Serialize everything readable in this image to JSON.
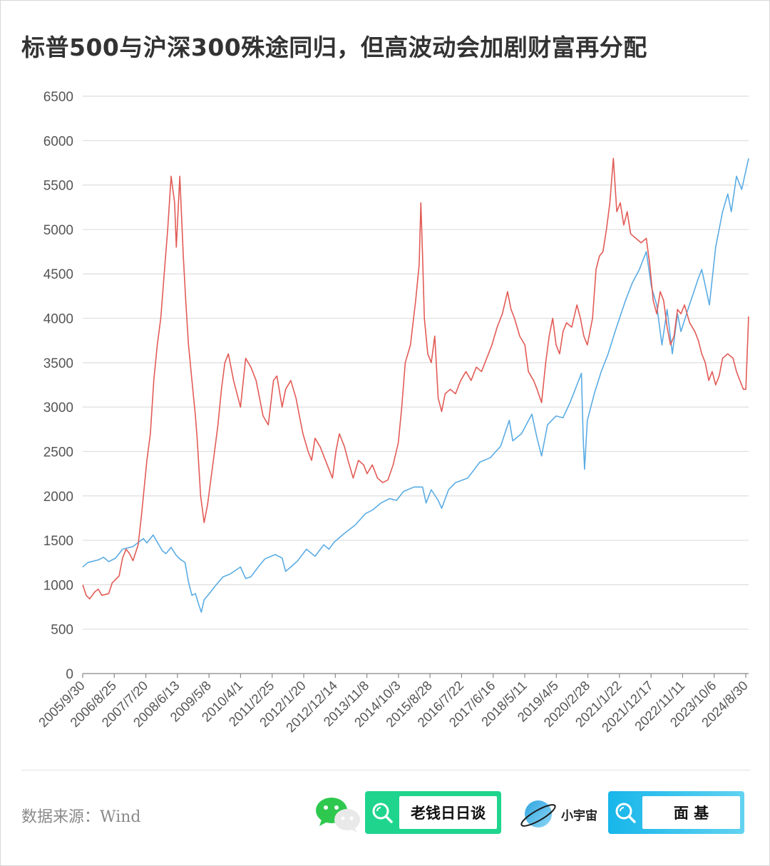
{
  "title": "标普500与沪深300殊途同归，但高波动会加剧财富再分配",
  "footer": {
    "source": "数据来源：Wind",
    "search_label_1": "老钱日日谈",
    "brand_name": "小宇宙",
    "search_label_2": "面 基"
  },
  "colors": {
    "sp500": "#5aace4",
    "csi300": "#e25b56",
    "grid": "#dddddd",
    "axis": "#888888",
    "green_box": "#1fd58e",
    "blue_box": "#17b6ea"
  },
  "chart_data": {
    "type": "line",
    "title": "标普500与沪深300殊途同归，但高波动会加剧财富再分配",
    "xlabel": "",
    "ylabel": "",
    "ylim": [
      0,
      6500
    ],
    "yticks": [
      0,
      500,
      1000,
      1500,
      2000,
      2500,
      3000,
      3500,
      4000,
      4500,
      5000,
      5500,
      6000,
      6500
    ],
    "xticks": [
      "2005/9/30",
      "2006/8/25",
      "2007/7/20",
      "2008/6/13",
      "2009/5/8",
      "2010/4/1",
      "2011/2/25",
      "2012/1/20",
      "2012/12/14",
      "2013/11/8",
      "2014/10/3",
      "2015/8/28",
      "2016/7/22",
      "2017/6/16",
      "2018/5/11",
      "2019/4/5",
      "2020/2/28",
      "2021/1/22",
      "2021/12/17",
      "2022/11/11",
      "2023/10/6",
      "2024/8/30"
    ],
    "x_range": [
      2005.75,
      2024.95
    ],
    "grid": true,
    "legend": "none",
    "series": [
      {
        "name": "",
        "color": "#5aace4",
        "points": [
          [
            2005.75,
            1200
          ],
          [
            2005.9,
            1250
          ],
          [
            2006.2,
            1280
          ],
          [
            2006.35,
            1310
          ],
          [
            2006.5,
            1260
          ],
          [
            2006.7,
            1300
          ],
          [
            2006.9,
            1400
          ],
          [
            2007.2,
            1430
          ],
          [
            2007.5,
            1520
          ],
          [
            2007.6,
            1470
          ],
          [
            2007.78,
            1560
          ],
          [
            2007.9,
            1480
          ],
          [
            2008.05,
            1380
          ],
          [
            2008.15,
            1350
          ],
          [
            2008.3,
            1420
          ],
          [
            2008.45,
            1330
          ],
          [
            2008.55,
            1290
          ],
          [
            2008.7,
            1250
          ],
          [
            2008.8,
            1030
          ],
          [
            2008.9,
            880
          ],
          [
            2009.0,
            900
          ],
          [
            2009.1,
            770
          ],
          [
            2009.17,
            690
          ],
          [
            2009.25,
            830
          ],
          [
            2009.4,
            900
          ],
          [
            2009.6,
            1000
          ],
          [
            2009.8,
            1090
          ],
          [
            2010.0,
            1120
          ],
          [
            2010.3,
            1200
          ],
          [
            2010.45,
            1070
          ],
          [
            2010.6,
            1090
          ],
          [
            2010.85,
            1220
          ],
          [
            2011.0,
            1290
          ],
          [
            2011.3,
            1340
          ],
          [
            2011.5,
            1300
          ],
          [
            2011.6,
            1150
          ],
          [
            2011.75,
            1200
          ],
          [
            2011.95,
            1270
          ],
          [
            2012.2,
            1400
          ],
          [
            2012.45,
            1320
          ],
          [
            2012.7,
            1450
          ],
          [
            2012.85,
            1400
          ],
          [
            2013.0,
            1480
          ],
          [
            2013.3,
            1580
          ],
          [
            2013.6,
            1670
          ],
          [
            2013.9,
            1800
          ],
          [
            2014.1,
            1840
          ],
          [
            2014.35,
            1920
          ],
          [
            2014.6,
            1970
          ],
          [
            2014.8,
            1950
          ],
          [
            2015.0,
            2050
          ],
          [
            2015.3,
            2100
          ],
          [
            2015.55,
            2100
          ],
          [
            2015.65,
            1920
          ],
          [
            2015.8,
            2070
          ],
          [
            2016.0,
            1950
          ],
          [
            2016.1,
            1860
          ],
          [
            2016.3,
            2070
          ],
          [
            2016.5,
            2150
          ],
          [
            2016.85,
            2200
          ],
          [
            2017.2,
            2380
          ],
          [
            2017.5,
            2430
          ],
          [
            2017.8,
            2560
          ],
          [
            2018.05,
            2850
          ],
          [
            2018.15,
            2620
          ],
          [
            2018.4,
            2700
          ],
          [
            2018.7,
            2920
          ],
          [
            2018.85,
            2650
          ],
          [
            2018.98,
            2450
          ],
          [
            2019.15,
            2800
          ],
          [
            2019.4,
            2900
          ],
          [
            2019.6,
            2880
          ],
          [
            2019.8,
            3050
          ],
          [
            2020.0,
            3250
          ],
          [
            2020.13,
            3380
          ],
          [
            2020.18,
            2650
          ],
          [
            2020.22,
            2300
          ],
          [
            2020.3,
            2850
          ],
          [
            2020.5,
            3150
          ],
          [
            2020.7,
            3400
          ],
          [
            2020.9,
            3600
          ],
          [
            2021.1,
            3850
          ],
          [
            2021.4,
            4200
          ],
          [
            2021.6,
            4400
          ],
          [
            2021.8,
            4550
          ],
          [
            2022.0,
            4750
          ],
          [
            2022.15,
            4350
          ],
          [
            2022.3,
            4150
          ],
          [
            2022.45,
            3700
          ],
          [
            2022.6,
            4100
          ],
          [
            2022.75,
            3600
          ],
          [
            2022.9,
            4050
          ],
          [
            2023.0,
            3850
          ],
          [
            2023.2,
            4100
          ],
          [
            2023.5,
            4450
          ],
          [
            2023.6,
            4550
          ],
          [
            2023.82,
            4150
          ],
          [
            2024.0,
            4800
          ],
          [
            2024.2,
            5200
          ],
          [
            2024.35,
            5400
          ],
          [
            2024.45,
            5200
          ],
          [
            2024.6,
            5600
          ],
          [
            2024.75,
            5450
          ],
          [
            2024.95,
            5800
          ]
        ]
      },
      {
        "name": "",
        "color": "#e25b56",
        "points": [
          [
            2005.75,
            1000
          ],
          [
            2005.85,
            880
          ],
          [
            2005.95,
            840
          ],
          [
            2006.1,
            920
          ],
          [
            2006.2,
            950
          ],
          [
            2006.3,
            880
          ],
          [
            2006.5,
            900
          ],
          [
            2006.6,
            1020
          ],
          [
            2006.8,
            1100
          ],
          [
            2006.9,
            1300
          ],
          [
            2007.0,
            1400
          ],
          [
            2007.1,
            1350
          ],
          [
            2007.2,
            1270
          ],
          [
            2007.35,
            1450
          ],
          [
            2007.45,
            1800
          ],
          [
            2007.6,
            2400
          ],
          [
            2007.7,
            2700
          ],
          [
            2007.8,
            3300
          ],
          [
            2007.9,
            3700
          ],
          [
            2008.0,
            4000
          ],
          [
            2008.1,
            4500
          ],
          [
            2008.2,
            5000
          ],
          [
            2008.3,
            5600
          ],
          [
            2008.4,
            5300
          ],
          [
            2008.45,
            4800
          ],
          [
            2008.55,
            5600
          ],
          [
            2008.65,
            4700
          ],
          [
            2008.72,
            4200
          ],
          [
            2008.8,
            3700
          ],
          [
            2008.9,
            3300
          ],
          [
            2009.0,
            2900
          ],
          [
            2009.05,
            2650
          ],
          [
            2009.15,
            2000
          ],
          [
            2009.25,
            1700
          ],
          [
            2009.35,
            1900
          ],
          [
            2009.45,
            2200
          ],
          [
            2009.55,
            2500
          ],
          [
            2009.65,
            2800
          ],
          [
            2009.75,
            3200
          ],
          [
            2009.85,
            3500
          ],
          [
            2009.95,
            3600
          ],
          [
            2010.1,
            3300
          ],
          [
            2010.3,
            3000
          ],
          [
            2010.45,
            3550
          ],
          [
            2010.6,
            3450
          ],
          [
            2010.75,
            3300
          ],
          [
            2010.85,
            3100
          ],
          [
            2010.95,
            2900
          ],
          [
            2011.1,
            2800
          ],
          [
            2011.25,
            3300
          ],
          [
            2011.35,
            3350
          ],
          [
            2011.5,
            3000
          ],
          [
            2011.6,
            3200
          ],
          [
            2011.75,
            3300
          ],
          [
            2011.9,
            3100
          ],
          [
            2012.0,
            2900
          ],
          [
            2012.1,
            2700
          ],
          [
            2012.25,
            2500
          ],
          [
            2012.35,
            2400
          ],
          [
            2012.45,
            2650
          ],
          [
            2012.6,
            2550
          ],
          [
            2012.75,
            2400
          ],
          [
            2012.95,
            2200
          ],
          [
            2013.05,
            2500
          ],
          [
            2013.15,
            2700
          ],
          [
            2013.3,
            2550
          ],
          [
            2013.4,
            2400
          ],
          [
            2013.55,
            2200
          ],
          [
            2013.7,
            2400
          ],
          [
            2013.85,
            2350
          ],
          [
            2013.95,
            2250
          ],
          [
            2014.1,
            2350
          ],
          [
            2014.25,
            2200
          ],
          [
            2014.4,
            2150
          ],
          [
            2014.55,
            2180
          ],
          [
            2014.7,
            2350
          ],
          [
            2014.85,
            2600
          ],
          [
            2014.95,
            3000
          ],
          [
            2015.05,
            3500
          ],
          [
            2015.2,
            3700
          ],
          [
            2015.35,
            4200
          ],
          [
            2015.45,
            4600
          ],
          [
            2015.5,
            5300
          ],
          [
            2015.55,
            4700
          ],
          [
            2015.6,
            4000
          ],
          [
            2015.7,
            3600
          ],
          [
            2015.8,
            3500
          ],
          [
            2015.9,
            3800
          ],
          [
            2016.0,
            3100
          ],
          [
            2016.1,
            2950
          ],
          [
            2016.2,
            3150
          ],
          [
            2016.35,
            3200
          ],
          [
            2016.5,
            3150
          ],
          [
            2016.65,
            3300
          ],
          [
            2016.8,
            3400
          ],
          [
            2016.95,
            3300
          ],
          [
            2017.1,
            3450
          ],
          [
            2017.25,
            3400
          ],
          [
            2017.4,
            3550
          ],
          [
            2017.55,
            3700
          ],
          [
            2017.7,
            3900
          ],
          [
            2017.85,
            4050
          ],
          [
            2018.0,
            4300
          ],
          [
            2018.1,
            4100
          ],
          [
            2018.2,
            4000
          ],
          [
            2018.35,
            3800
          ],
          [
            2018.5,
            3700
          ],
          [
            2018.6,
            3400
          ],
          [
            2018.75,
            3300
          ],
          [
            2018.85,
            3200
          ],
          [
            2018.98,
            3050
          ],
          [
            2019.1,
            3500
          ],
          [
            2019.2,
            3800
          ],
          [
            2019.3,
            4000
          ],
          [
            2019.4,
            3700
          ],
          [
            2019.5,
            3600
          ],
          [
            2019.6,
            3850
          ],
          [
            2019.7,
            3950
          ],
          [
            2019.85,
            3900
          ],
          [
            2020.0,
            4150
          ],
          [
            2020.1,
            4000
          ],
          [
            2020.2,
            3800
          ],
          [
            2020.3,
            3700
          ],
          [
            2020.45,
            4000
          ],
          [
            2020.55,
            4550
          ],
          [
            2020.65,
            4700
          ],
          [
            2020.75,
            4750
          ],
          [
            2020.85,
            5000
          ],
          [
            2020.95,
            5300
          ],
          [
            2021.05,
            5800
          ],
          [
            2021.15,
            5200
          ],
          [
            2021.25,
            5300
          ],
          [
            2021.35,
            5050
          ],
          [
            2021.45,
            5200
          ],
          [
            2021.55,
            4950
          ],
          [
            2021.7,
            4900
          ],
          [
            2021.85,
            4850
          ],
          [
            2022.0,
            4900
          ],
          [
            2022.1,
            4600
          ],
          [
            2022.2,
            4200
          ],
          [
            2022.3,
            4050
          ],
          [
            2022.4,
            4300
          ],
          [
            2022.5,
            4200
          ],
          [
            2022.6,
            3900
          ],
          [
            2022.7,
            3700
          ],
          [
            2022.8,
            3800
          ],
          [
            2022.9,
            4100
          ],
          [
            2023.0,
            4050
          ],
          [
            2023.1,
            4150
          ],
          [
            2023.25,
            3950
          ],
          [
            2023.4,
            3850
          ],
          [
            2023.5,
            3750
          ],
          [
            2023.6,
            3600
          ],
          [
            2023.7,
            3500
          ],
          [
            2023.8,
            3300
          ],
          [
            2023.9,
            3400
          ],
          [
            2024.0,
            3250
          ],
          [
            2024.1,
            3350
          ],
          [
            2024.2,
            3550
          ],
          [
            2024.35,
            3600
          ],
          [
            2024.5,
            3550
          ],
          [
            2024.6,
            3400
          ],
          [
            2024.7,
            3300
          ],
          [
            2024.8,
            3200
          ],
          [
            2024.87,
            3200
          ],
          [
            2024.95,
            4020
          ]
        ]
      }
    ]
  }
}
